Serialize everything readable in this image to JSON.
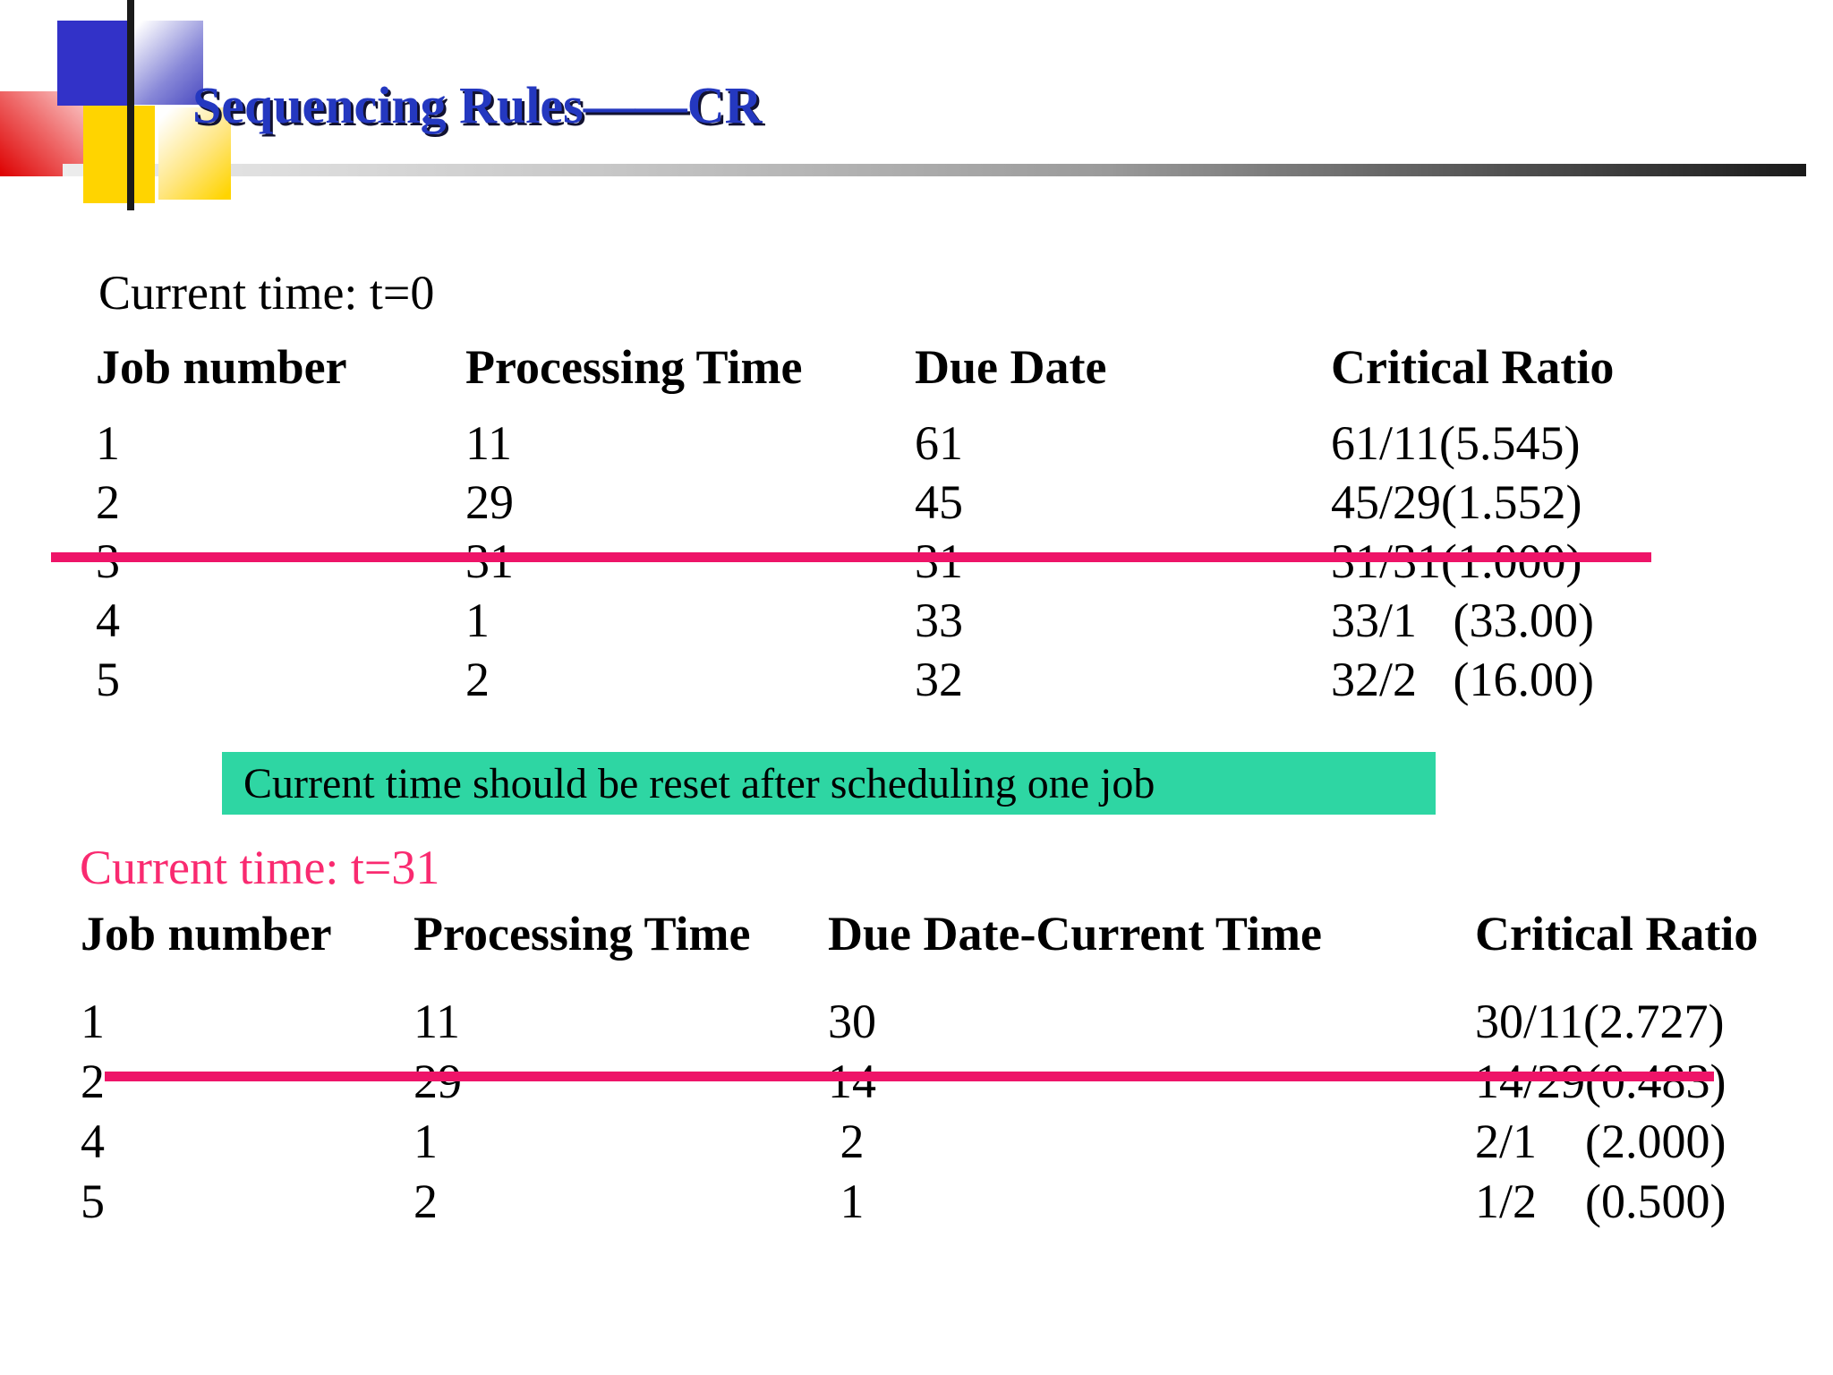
{
  "slide": {
    "title": "Sequencing Rules——CR"
  },
  "colors": {
    "title_blue": "#2438C0",
    "strike_pink": "#EE1468",
    "label_pink": "#F92A70",
    "note_green": "#2ED6A3",
    "deco_blue": "#3232C8",
    "deco_yellow": "#FFD400",
    "deco_red": "#DD0000"
  },
  "section1": {
    "label": "Current time: t=0",
    "headers": [
      "Job number",
      "Processing Time",
      "Due Date",
      "Critical Ratio"
    ],
    "rows": [
      [
        "1",
        "11",
        "61",
        "61/11(5.545)"
      ],
      [
        "2",
        "29",
        "45",
        "45/29(1.552)"
      ],
      [
        "3",
        "31",
        "31",
        "31/31(1.000)"
      ],
      [
        "4",
        "1",
        "33",
        "33/1   (33.00)"
      ],
      [
        "5",
        "2",
        "32",
        "32/2   (16.00)"
      ]
    ],
    "struck_job": "3"
  },
  "note": {
    "text": "Current time should be reset after scheduling one job"
  },
  "section2": {
    "label": "Current time: t=31",
    "headers": [
      "Job number",
      "Processing Time",
      "Due Date-Current Time",
      "Critical Ratio"
    ],
    "rows": [
      [
        "1",
        "11",
        "30",
        "30/11(2.727)"
      ],
      [
        "2",
        "29",
        "14",
        "14/29(0.483)"
      ],
      [
        "4",
        "1",
        " 2",
        "2/1    (2.000)"
      ],
      [
        "5",
        "2",
        " 1",
        "1/2    (0.500)"
      ]
    ],
    "struck_job": "2"
  }
}
